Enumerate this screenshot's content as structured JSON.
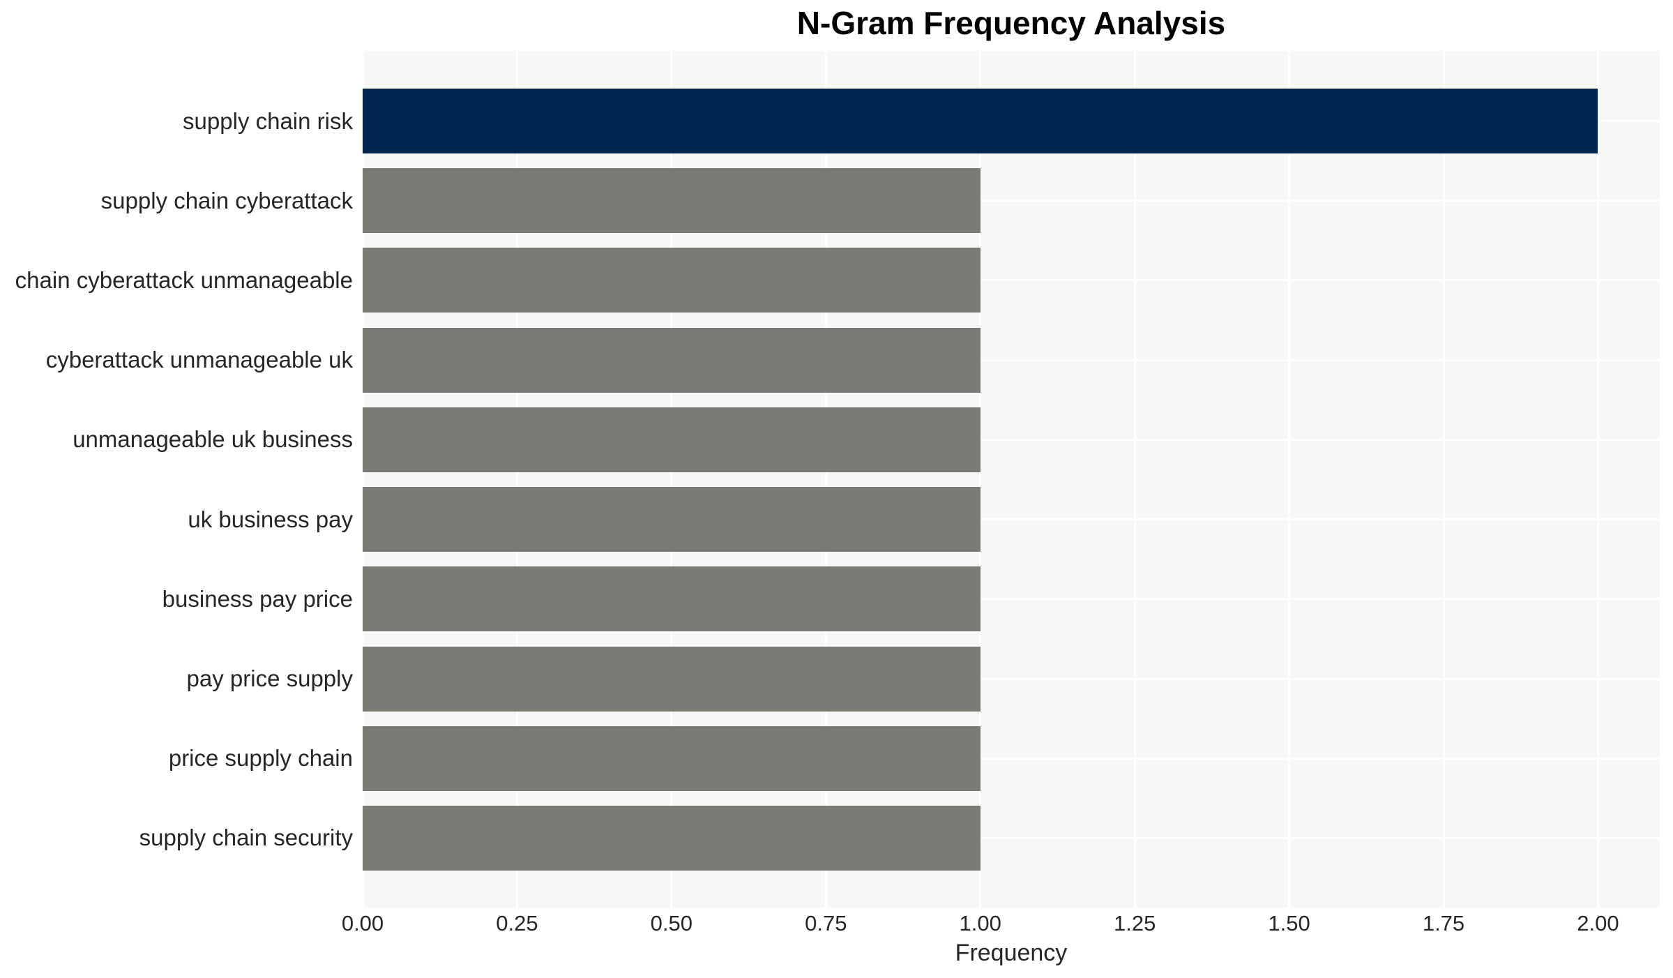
{
  "chart_data": {
    "type": "bar",
    "orientation": "horizontal",
    "title": "N-Gram Frequency Analysis",
    "xlabel": "Frequency",
    "ylabel": "",
    "categories": [
      "supply chain risk",
      "supply chain cyberattack",
      "chain cyberattack unmanageable",
      "cyberattack unmanageable uk",
      "unmanageable uk business",
      "uk business pay",
      "business pay price",
      "pay price supply",
      "price supply chain",
      "supply chain security"
    ],
    "values": [
      2,
      1,
      1,
      1,
      1,
      1,
      1,
      1,
      1,
      1
    ],
    "bar_colors": [
      "#00254E",
      "#7B7A74",
      "#7B7A74",
      "#7B7A74",
      "#7B7A74",
      "#7B7A74",
      "#7B7A74",
      "#7B7A74",
      "#7B7A74",
      "#7B7A74"
    ],
    "xlim": [
      0,
      2.1
    ],
    "xticks": [
      0.0,
      0.25,
      0.5,
      0.75,
      1.0,
      1.25,
      1.5,
      1.75,
      2.0
    ],
    "xtick_labels": [
      "0.00",
      "0.25",
      "0.50",
      "0.75",
      "1.00",
      "1.25",
      "1.50",
      "1.75",
      "2.00"
    ],
    "grid": true,
    "legend": false,
    "colors": {
      "highlight_bar": "#00254E",
      "default_bar": "#7B7A74",
      "plot_background": "#F7F7F7",
      "figure_background": "#FFFFFF",
      "grid_line": "#FFFFFF",
      "axis_text": "#262626",
      "title_text": "#000000"
    }
  }
}
